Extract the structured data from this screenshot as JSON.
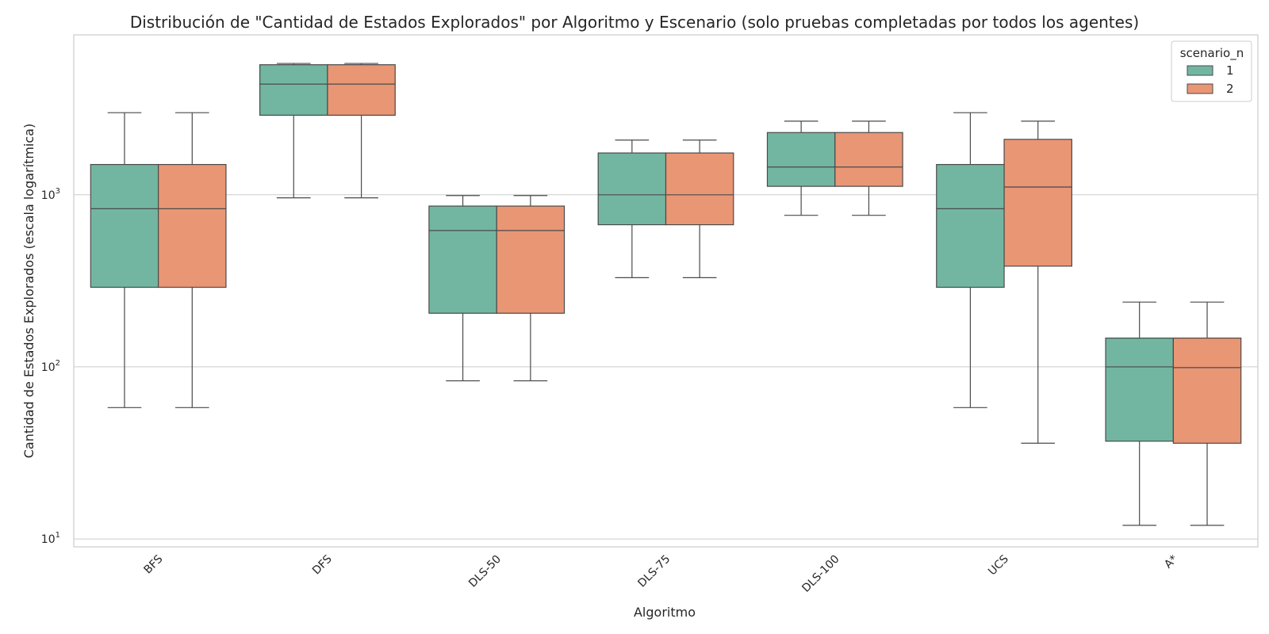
{
  "chart_data": {
    "type": "box",
    "title": "Distribución de \"Cantidad de Estados Explorados\" por Algoritmo y Escenario (solo pruebas completadas por todos los agentes)",
    "xlabel": "Algoritmo",
    "ylabel": "Cantidad de Estados Explorados (escala logarítmica)",
    "yscale": "log",
    "ylim": [
      9,
      8500
    ],
    "yticks": [
      {
        "value": 10,
        "base": "10",
        "exp": "1"
      },
      {
        "value": 100,
        "base": "10",
        "exp": "2"
      },
      {
        "value": 1000,
        "base": "10",
        "exp": "3"
      }
    ],
    "grid": true,
    "legend": {
      "title": "scenario_n",
      "position": "top-right"
    },
    "categories": [
      "BFS",
      "DFS",
      "DLS-50",
      "DLS-75",
      "DLS-100",
      "UCS",
      "A*"
    ],
    "series": [
      {
        "name": "1",
        "color": "#72b6a1",
        "boxes": [
          {
            "whislo": 58,
            "q1": 290,
            "med": 830,
            "q3": 1500,
            "whishi": 3000
          },
          {
            "whislo": 960,
            "q1": 2900,
            "med": 4400,
            "q3": 5700,
            "whishi": 5800
          },
          {
            "whislo": 83,
            "q1": 205,
            "med": 620,
            "q3": 860,
            "whishi": 990
          },
          {
            "whislo": 330,
            "q1": 670,
            "med": 1000,
            "q3": 1750,
            "whishi": 2080
          },
          {
            "whislo": 760,
            "q1": 1120,
            "med": 1450,
            "q3": 2300,
            "whishi": 2680
          },
          {
            "whislo": 58,
            "q1": 290,
            "med": 830,
            "q3": 1500,
            "whishi": 3000
          },
          {
            "whislo": 12,
            "q1": 37,
            "med": 100,
            "q3": 147,
            "whishi": 238
          }
        ]
      },
      {
        "name": "2",
        "color": "#e99675",
        "boxes": [
          {
            "whislo": 58,
            "q1": 290,
            "med": 830,
            "q3": 1500,
            "whishi": 3000
          },
          {
            "whislo": 960,
            "q1": 2900,
            "med": 4400,
            "q3": 5700,
            "whishi": 5800
          },
          {
            "whislo": 83,
            "q1": 205,
            "med": 620,
            "q3": 860,
            "whishi": 990
          },
          {
            "whislo": 330,
            "q1": 670,
            "med": 1000,
            "q3": 1750,
            "whishi": 2080
          },
          {
            "whislo": 760,
            "q1": 1120,
            "med": 1450,
            "q3": 2300,
            "whishi": 2680
          },
          {
            "whislo": 36,
            "q1": 385,
            "med": 1110,
            "q3": 2100,
            "whishi": 2680
          },
          {
            "whislo": 12,
            "q1": 36,
            "med": 99,
            "q3": 147,
            "whishi": 238
          }
        ]
      }
    ]
  }
}
